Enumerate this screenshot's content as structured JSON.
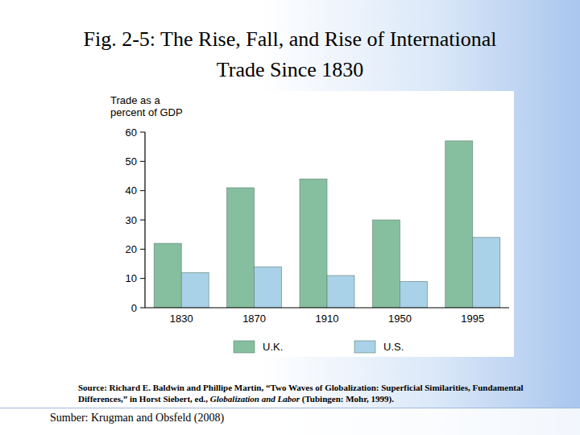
{
  "chart_data": {
    "type": "bar",
    "title": "Fig. 2-5: The Rise, Fall, and Rise of International Trade Since 1830",
    "ylabel": "Trade as a percent of GDP",
    "categories": [
      "1830",
      "1870",
      "1910",
      "1950",
      "1995"
    ],
    "series": [
      {
        "name": "U.K.",
        "color": "#86bf9f",
        "values": [
          22,
          41,
          44,
          30,
          57
        ]
      },
      {
        "name": "U.S.",
        "color": "#a9d1e8",
        "values": [
          12,
          14,
          11,
          9,
          24
        ]
      }
    ],
    "ylim": [
      0,
      60
    ],
    "yticks": [
      0,
      10,
      20,
      30,
      40,
      50,
      60
    ],
    "legend": "bottom",
    "source": [
      "Source: Richard E. Baldwin and Phillipe Martin, “Two Waves of Globalization: Superficial Similarities, Fundamental Differences,” in Horst Siebert, ed., ",
      "Globalization and Labor",
      " (Tubingen: Mohr, 1999)."
    ],
    "footer": "Sumber: Krugman and Obsfeld (2008)"
  }
}
